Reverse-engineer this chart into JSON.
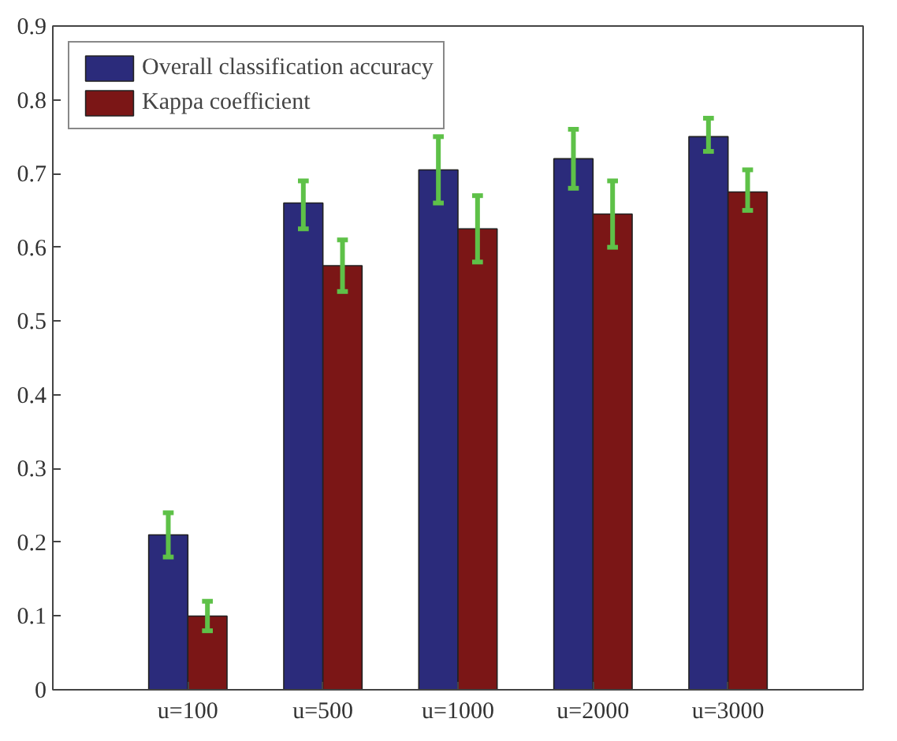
{
  "chart_data": {
    "type": "bar",
    "categories": [
      "u=100",
      "u=500",
      "u=1000",
      "u=2000",
      "u=3000"
    ],
    "series": [
      {
        "name": "Overall classification accuracy",
        "color": "#2b2b7b",
        "values": [
          0.21,
          0.66,
          0.705,
          0.72,
          0.75
        ],
        "errors": [
          [
            0.18,
            0.24
          ],
          [
            0.625,
            0.69
          ],
          [
            0.66,
            0.75
          ],
          [
            0.68,
            0.76
          ],
          [
            0.73,
            0.775
          ]
        ]
      },
      {
        "name": "Kappa coefficient",
        "color": "#7b1616",
        "values": [
          0.1,
          0.575,
          0.625,
          0.645,
          0.675
        ],
        "errors": [
          [
            0.08,
            0.12
          ],
          [
            0.54,
            0.61
          ],
          [
            0.58,
            0.67
          ],
          [
            0.6,
            0.69
          ],
          [
            0.65,
            0.705
          ]
        ]
      }
    ],
    "ylim": [
      0,
      0.9
    ],
    "yticks": [
      0,
      0.1,
      0.2,
      0.3,
      0.4,
      0.5,
      0.6,
      0.7,
      0.8,
      0.9
    ],
    "grid": false,
    "legend": "top left"
  }
}
